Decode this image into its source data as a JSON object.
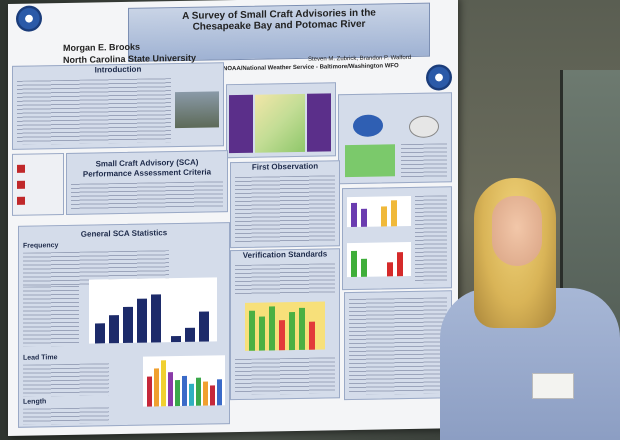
{
  "poster": {
    "title_line1": "A Survey of Small Craft Advisories in the",
    "title_line2": "Chesapeake Bay and Potomac River",
    "author": "Morgan E. Brooks",
    "university": "North Carolina State University",
    "coauthors": "Steven M. Zubrick, Brandon P. Walford",
    "noaa": "NOAA/National Weather Service - Baltimore/Washington WFO",
    "sections": {
      "intro": "Introduction",
      "sca_criteria_line1": "Small Craft Advisory (SCA)",
      "sca_criteria_line2": "Performance Assessment Criteria",
      "general_stats": "General SCA Statistics",
      "frequency": "Frequency",
      "lead_time": "Lead Time",
      "length": "Length",
      "first_observation": "First Observation",
      "verification": "Verification Standards"
    }
  },
  "colors": {
    "poster_panel": "#d4dcea",
    "bar_navy": "#1d2b6a",
    "purple": "#5b2f8a"
  }
}
